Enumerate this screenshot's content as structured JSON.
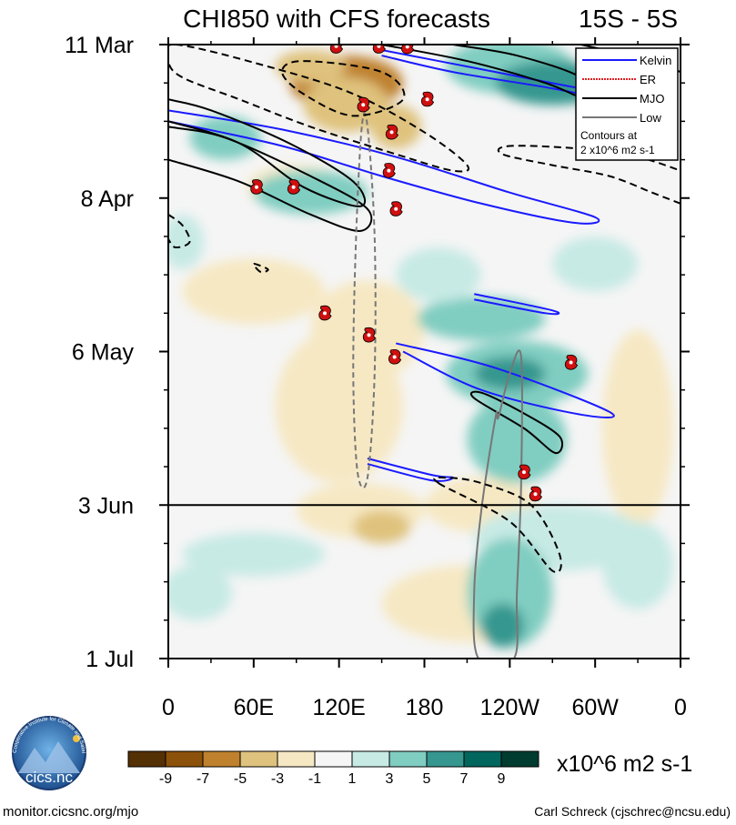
{
  "chart_data": {
    "type": "heatmap",
    "title": "CHI850 with CFS forecasts",
    "subtitle": "15S - 5S",
    "variable": "CHI850",
    "units": "x10^6 m2 s-1",
    "x_ticks": [
      {
        "lon": 0,
        "label": "0"
      },
      {
        "lon": 60,
        "label": "60E"
      },
      {
        "lon": 120,
        "label": "120E"
      },
      {
        "lon": 180,
        "label": "180"
      },
      {
        "lon": 240,
        "label": "120W"
      },
      {
        "lon": 300,
        "label": "60W"
      },
      {
        "lon": 360,
        "label": "0"
      }
    ],
    "xlim": [
      0,
      360
    ],
    "y_ticks": [
      {
        "day": 0,
        "label": "11 Mar"
      },
      {
        "day": 28,
        "label": "8 Apr"
      },
      {
        "day": 56,
        "label": "6 May"
      },
      {
        "day": 84,
        "label": "3 Jun"
      },
      {
        "day": 112,
        "label": "1 Jul"
      }
    ],
    "ylim": [
      0,
      112
    ],
    "forecast_start_day": 84,
    "colorbar": {
      "labels": [
        "-9",
        "-7",
        "-5",
        "-3",
        "-1",
        "1",
        "3",
        "5",
        "7",
        "9"
      ],
      "levels": [
        -9,
        -7,
        -5,
        -3,
        -1,
        1,
        3,
        5,
        7,
        9
      ],
      "colors": [
        "#543005",
        "#8c510a",
        "#bf812d",
        "#dfc27d",
        "#f6e8c3",
        "#f5f5f5",
        "#c7eae5",
        "#80cdc1",
        "#35978f",
        "#01665e",
        "#003c30"
      ]
    },
    "anomaly_blobs": [
      {
        "lon": 125,
        "day": 7,
        "rx": 40,
        "ry": 5,
        "v": -7
      },
      {
        "lon": 100,
        "day": 4,
        "rx": 25,
        "ry": 3,
        "v": -5
      },
      {
        "lon": 160,
        "day": 15,
        "rx": 18,
        "ry": 4,
        "v": -5
      },
      {
        "lon": 125,
        "day": 11,
        "rx": 30,
        "ry": 5,
        "v": -4
      },
      {
        "lon": 140,
        "day": 52,
        "rx": 40,
        "ry": 9,
        "v": -3
      },
      {
        "lon": 120,
        "day": 66,
        "rx": 45,
        "ry": 14,
        "v": -2
      },
      {
        "lon": 135,
        "day": 85,
        "rx": 45,
        "ry": 5,
        "v": -3
      },
      {
        "lon": 150,
        "day": 88,
        "rx": 20,
        "ry": 3,
        "v": -5
      },
      {
        "lon": 220,
        "day": 84,
        "rx": 40,
        "ry": 5,
        "v": -2
      },
      {
        "lon": 210,
        "day": 102,
        "rx": 60,
        "ry": 7,
        "v": -2
      },
      {
        "lon": 60,
        "day": 45,
        "rx": 50,
        "ry": 6,
        "v": -2
      },
      {
        "lon": 330,
        "day": 70,
        "rx": 25,
        "ry": 18,
        "v": -2
      },
      {
        "lon": 300,
        "day": 30,
        "rx": 40,
        "ry": 4,
        "v": -1
      },
      {
        "lon": 90,
        "day": 26,
        "rx": 35,
        "ry": 4,
        "v": -2
      },
      {
        "lon": 40,
        "day": 17,
        "rx": 25,
        "ry": 4,
        "v": 3
      },
      {
        "lon": 100,
        "day": 27,
        "rx": 40,
        "ry": 4,
        "v": 3
      },
      {
        "lon": 240,
        "day": 4,
        "rx": 45,
        "ry": 5,
        "v": 4
      },
      {
        "lon": 270,
        "day": 7,
        "rx": 40,
        "ry": 4,
        "v": 6
      },
      {
        "lon": 220,
        "day": 50,
        "rx": 45,
        "ry": 4,
        "v": 3
      },
      {
        "lon": 245,
        "day": 60,
        "rx": 50,
        "ry": 6,
        "v": 4
      },
      {
        "lon": 245,
        "day": 72,
        "rx": 35,
        "ry": 8,
        "v": 3
      },
      {
        "lon": 240,
        "day": 60,
        "rx": 25,
        "ry": 3,
        "v": 6
      },
      {
        "lon": 275,
        "day": 90,
        "rx": 60,
        "ry": 6,
        "v": 2
      },
      {
        "lon": 240,
        "day": 100,
        "rx": 30,
        "ry": 10,
        "v": 3
      },
      {
        "lon": 235,
        "day": 106,
        "rx": 15,
        "ry": 4,
        "v": 6
      },
      {
        "lon": 60,
        "day": 93,
        "rx": 50,
        "ry": 4,
        "v": 2
      },
      {
        "lon": 20,
        "day": 100,
        "rx": 25,
        "ry": 5,
        "v": 2
      },
      {
        "lon": 330,
        "day": 95,
        "rx": 25,
        "ry": 8,
        "v": 2
      },
      {
        "lon": 300,
        "day": 40,
        "rx": 30,
        "ry": 5,
        "v": 2
      },
      {
        "lon": 10,
        "day": 36,
        "rx": 15,
        "ry": 5,
        "v": 2
      },
      {
        "lon": 190,
        "day": 42,
        "rx": 30,
        "ry": 5,
        "v": 2
      }
    ],
    "contours": [
      {
        "kind": "Kelvin",
        "color": "#1a1aff",
        "width": 2,
        "dash": "",
        "closed": false,
        "points": [
          [
            0,
            12
          ],
          [
            80,
            15.5
          ],
          [
            160,
            20.5
          ],
          [
            240,
            27
          ],
          [
            300,
            31.5
          ],
          [
            285,
            32.5
          ],
          [
            220,
            29
          ],
          [
            150,
            24
          ],
          [
            80,
            18.5
          ],
          [
            0,
            14
          ]
        ]
      },
      {
        "kind": "Kelvin",
        "color": "#1a1aff",
        "width": 2,
        "dash": "",
        "closed": false,
        "points": [
          [
            150,
            1
          ],
          [
            220,
            4.5
          ],
          [
            290,
            8
          ],
          [
            340,
            10
          ],
          [
            330,
            11
          ],
          [
            270,
            8
          ],
          [
            200,
            5
          ],
          [
            150,
            2
          ]
        ]
      },
      {
        "kind": "Kelvin",
        "color": "#1a1aff",
        "width": 2,
        "dash": "",
        "closed": false,
        "points": [
          [
            160,
            54.5
          ],
          [
            230,
            59
          ],
          [
            310,
            67
          ],
          [
            290,
            67.5
          ],
          [
            220,
            63
          ],
          [
            165,
            56
          ]
        ]
      },
      {
        "kind": "Kelvin",
        "color": "#1a1aff",
        "width": 2,
        "dash": "",
        "closed": false,
        "points": [
          [
            215,
            45.5
          ],
          [
            270,
            48.5
          ],
          [
            265,
            49
          ],
          [
            215,
            46.5
          ]
        ]
      },
      {
        "kind": "Kelvin",
        "color": "#1a1aff",
        "width": 2,
        "dash": "",
        "closed": false,
        "points": [
          [
            140,
            75.5
          ],
          [
            185,
            78.5
          ],
          [
            200,
            79
          ],
          [
            185,
            79.5
          ],
          [
            140,
            76.5
          ]
        ]
      },
      {
        "kind": "MJO",
        "color": "#000000",
        "width": 2,
        "dash": "",
        "closed": false,
        "points": [
          [
            0,
            14
          ],
          [
            50,
            18
          ],
          [
            95,
            26
          ],
          [
            135,
            29.5
          ],
          [
            130,
            25
          ],
          [
            85,
            18
          ],
          [
            30,
            12
          ],
          [
            0,
            10
          ]
        ]
      },
      {
        "kind": "MJO",
        "color": "#000000",
        "width": 2,
        "dash": "",
        "closed": false,
        "points": [
          [
            0,
            21
          ],
          [
            50,
            25
          ],
          [
            100,
            31
          ],
          [
            135,
            34
          ],
          [
            140,
            30
          ],
          [
            100,
            24
          ],
          [
            40,
            17
          ],
          [
            0,
            15
          ]
        ]
      },
      {
        "kind": "MJO",
        "color": "#000000",
        "width": 2,
        "dash": "",
        "closed": false,
        "points": [
          [
            150,
            0
          ],
          [
            210,
            3
          ],
          [
            265,
            7
          ],
          [
            295,
            10
          ],
          [
            290,
            6
          ],
          [
            245,
            2
          ],
          [
            200,
            0
          ]
        ]
      },
      {
        "kind": "MJO",
        "color": "#000000",
        "width": 2,
        "dash": "",
        "closed": false,
        "points": [
          [
            290,
            0
          ],
          [
            340,
            3
          ],
          [
            360,
            5
          ]
        ]
      },
      {
        "kind": "MJO",
        "color": "#000000",
        "width": 2,
        "dash": "",
        "closed": true,
        "points": [
          [
            215,
            64.5
          ],
          [
            250,
            70
          ],
          [
            272,
            74.5
          ],
          [
            275,
            71.5
          ],
          [
            248,
            67
          ],
          [
            220,
            63.5
          ]
        ]
      },
      {
        "kind": "Low",
        "color": "#777777",
        "width": 2,
        "dash": "6,4",
        "closed": true,
        "points": [
          [
            136,
            15
          ],
          [
            132,
            35
          ],
          [
            130,
            60
          ],
          [
            133,
            78
          ],
          [
            140,
            79
          ],
          [
            145,
            60
          ],
          [
            145,
            35
          ],
          [
            140,
            15
          ]
        ]
      },
      {
        "kind": "Low",
        "color": "#777777",
        "width": 2,
        "dash": "",
        "closed": true,
        "points": [
          [
            230,
            68
          ],
          [
            220,
            85
          ],
          [
            215,
            100
          ],
          [
            218,
            112
          ],
          [
            243,
            112
          ],
          [
            245,
            100
          ],
          [
            248,
            80
          ],
          [
            248,
            57
          ],
          [
            240,
            60
          ],
          [
            232,
            68
          ]
        ]
      },
      {
        "kind": "neg",
        "color": "#000000",
        "width": 2,
        "dash": "8,5",
        "closed": true,
        "points": [
          [
            5,
            0
          ],
          [
            70,
            4
          ],
          [
            130,
            9
          ],
          [
            180,
            16
          ],
          [
            210,
            22
          ],
          [
            200,
            23
          ],
          [
            160,
            20
          ],
          [
            100,
            15
          ],
          [
            50,
            10
          ],
          [
            10,
            6
          ],
          [
            0,
            3
          ]
        ]
      },
      {
        "kind": "neg",
        "color": "#000000",
        "width": 2,
        "dash": "8,5",
        "closed": true,
        "points": [
          [
            95,
            3
          ],
          [
            150,
            5
          ],
          [
            165,
            10
          ],
          [
            130,
            13
          ],
          [
            95,
            9
          ],
          [
            80,
            5
          ]
        ]
      },
      {
        "kind": "neg",
        "color": "#000000",
        "width": 2,
        "dash": "8,5",
        "closed": false,
        "points": [
          [
            360,
            29
          ],
          [
            340,
            27
          ],
          [
            310,
            24
          ],
          [
            270,
            22
          ],
          [
            235,
            20
          ],
          [
            240,
            18.5
          ],
          [
            290,
            19
          ],
          [
            330,
            20.5
          ],
          [
            360,
            23
          ]
        ]
      },
      {
        "kind": "neg",
        "color": "#000000",
        "width": 2,
        "dash": "8,5",
        "closed": true,
        "points": [
          [
            190,
            80
          ],
          [
            240,
            87
          ],
          [
            270,
            96
          ],
          [
            275,
            93
          ],
          [
            255,
            84
          ],
          [
            220,
            80
          ],
          [
            195,
            79
          ]
        ]
      },
      {
        "kind": "neg",
        "color": "#000000",
        "width": 2,
        "dash": "8,5",
        "closed": false,
        "points": [
          [
            0,
            31
          ],
          [
            10,
            33
          ],
          [
            15,
            36
          ],
          [
            5,
            37
          ],
          [
            0,
            35.5
          ]
        ]
      },
      {
        "kind": "neg",
        "color": "#000000",
        "width": 2,
        "dash": "8,5",
        "closed": true,
        "points": [
          [
            60,
            40
          ],
          [
            70,
            41
          ],
          [
            65,
            41.5
          ]
        ]
      }
    ],
    "storms": [
      {
        "lon": 118,
        "day": 0.3
      },
      {
        "lon": 148,
        "day": 0.3
      },
      {
        "lon": 168,
        "day": 0.4
      },
      {
        "lon": 182,
        "day": 10
      },
      {
        "lon": 137,
        "day": 11
      },
      {
        "lon": 157,
        "day": 16
      },
      {
        "lon": 155,
        "day": 23
      },
      {
        "lon": 62,
        "day": 26
      },
      {
        "lon": 88,
        "day": 26
      },
      {
        "lon": 160,
        "day": 30
      },
      {
        "lon": 110,
        "day": 49
      },
      {
        "lon": 141,
        "day": 53
      },
      {
        "lon": 159,
        "day": 57
      },
      {
        "lon": 283,
        "day": 58
      },
      {
        "lon": 250,
        "day": 78
      },
      {
        "lon": 258,
        "day": 82
      }
    ],
    "legend": {
      "position": "top-right",
      "items": [
        {
          "label": "Kelvin",
          "color": "#1a1aff",
          "dash": ""
        },
        {
          "label": "ER",
          "color": "#e02020",
          "dash": "2,1"
        },
        {
          "label": "MJO",
          "color": "#000000",
          "dash": ""
        },
        {
          "label": "Low",
          "color": "#777777",
          "dash": ""
        }
      ],
      "note_line1": "Contours at",
      "note_line2": "2 x10^6 m2 s-1"
    }
  },
  "logo_text": "cics.nc",
  "logo_ring_text": "Cooperative Institute for Climate and Satellites",
  "footer_left": "monitor.cicsnc.org/mjo",
  "footer_right": "Carl Schreck (cjschrec@ncsu.edu)"
}
